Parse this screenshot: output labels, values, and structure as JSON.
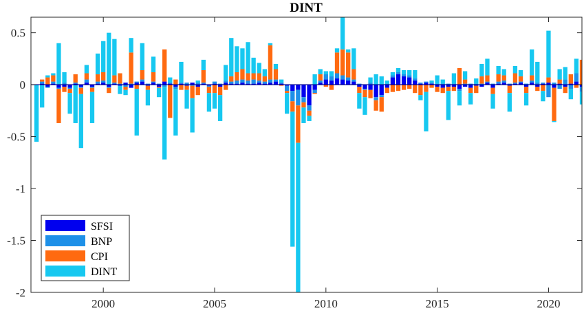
{
  "chart_data": {
    "type": "bar",
    "stacked": true,
    "title": "DINT",
    "xlabel": "",
    "ylabel": "",
    "xlim": [
      1996.75,
      2021.5
    ],
    "ylim": [
      -2,
      0.65
    ],
    "x_ticks": [
      2000,
      2005,
      2010,
      2015,
      2020
    ],
    "y_ticks": [
      -2,
      -1.5,
      -1,
      -0.5,
      0,
      0.5
    ],
    "y_tick_labels": [
      "-2",
      "-1.5",
      "-1",
      "-0.5",
      "0",
      "0.5"
    ],
    "legend_position": "bottom-left",
    "colors": {
      "SFSI": "#0000ee",
      "BNP": "#1e90e8",
      "CPI": "#ff6a10",
      "DINT": "#17c8f0"
    },
    "x": [
      1997.0,
      1997.25,
      1997.5,
      1997.75,
      1998.0,
      1998.25,
      1998.5,
      1998.75,
      1999.0,
      1999.25,
      1999.5,
      1999.75,
      2000.0,
      2000.25,
      2000.5,
      2000.75,
      2001.0,
      2001.25,
      2001.5,
      2001.75,
      2002.0,
      2002.25,
      2002.5,
      2002.75,
      2003.0,
      2003.25,
      2003.5,
      2003.75,
      2004.0,
      2004.25,
      2004.5,
      2004.75,
      2005.0,
      2005.25,
      2005.5,
      2005.75,
      2006.0,
      2006.25,
      2006.5,
      2006.75,
      2007.0,
      2007.25,
      2007.5,
      2007.75,
      2008.0,
      2008.25,
      2008.5,
      2008.75,
      2009.0,
      2009.25,
      2009.5,
      2009.75,
      2010.0,
      2010.25,
      2010.5,
      2010.75,
      2011.0,
      2011.25,
      2011.5,
      2011.75,
      2012.0,
      2012.25,
      2012.5,
      2012.75,
      2013.0,
      2013.25,
      2013.5,
      2013.75,
      2014.0,
      2014.25,
      2014.5,
      2014.75,
      2015.0,
      2015.25,
      2015.5,
      2015.75,
      2016.0,
      2016.25,
      2016.5,
      2016.75,
      2017.0,
      2017.25,
      2017.5,
      2017.75,
      2018.0,
      2018.25,
      2018.5,
      2018.75,
      2019.0,
      2019.25,
      2019.5,
      2019.75,
      2020.0,
      2020.25,
      2020.5,
      2020.75,
      2021.0,
      2021.25,
      2021.5
    ],
    "series": [
      {
        "name": "SFSI",
        "values": [
          0,
          0.01,
          -0.02,
          0.01,
          -0.03,
          -0.02,
          -0.03,
          0.01,
          -0.02,
          0.02,
          -0.02,
          0.01,
          0.02,
          -0.02,
          0.01,
          -0.01,
          0.02,
          -0.03,
          0.02,
          0.03,
          -0.01,
          0.02,
          -0.02,
          0.03,
          0.01,
          -0.02,
          0.01,
          -0.01,
          0.02,
          -0.02,
          0.01,
          -0.01,
          0.01,
          -0.02,
          0.02,
          0.01,
          0.01,
          0.02,
          0.01,
          0.01,
          0.02,
          0.01,
          0.02,
          0.03,
          0.01,
          -0.01,
          -0.06,
          -0.05,
          -0.12,
          -0.2,
          -0.05,
          0.02,
          0.05,
          0.04,
          0.06,
          0.05,
          0.04,
          0.03,
          -0.02,
          -0.04,
          -0.05,
          -0.12,
          -0.1,
          -0.03,
          0.07,
          0.1,
          0.08,
          0.07,
          0.04,
          0.01,
          0.02,
          0.01,
          -0.02,
          -0.03,
          -0.02,
          -0.02,
          -0.04,
          -0.02,
          -0.03,
          -0.01,
          -0.02,
          0.02,
          -0.03,
          0.01,
          0.02,
          -0.01,
          0.01,
          0.02,
          -0.02,
          0.02,
          -0.02,
          0.01,
          0.02,
          -0.03,
          0.01,
          -0.02,
          0.01,
          0.03,
          -0.02
        ]
      },
      {
        "name": "BNP",
        "values": [
          0,
          0.02,
          -0.01,
          0.02,
          -0.01,
          0.02,
          -0.01,
          0.01,
          -0.01,
          0.03,
          -0.01,
          0.02,
          0.02,
          -0.01,
          0.01,
          0.01,
          -0.02,
          0.01,
          0.01,
          0.02,
          0.01,
          0.01,
          0.01,
          -0.02,
          0.01,
          -0.02,
          0.01,
          0.02,
          -0.01,
          0.02,
          0.01,
          -0.01,
          0.02,
          0.01,
          0.02,
          0.02,
          0.03,
          0.03,
          0.03,
          0.04,
          0.02,
          0.02,
          0.03,
          0.02,
          0.01,
          -0.05,
          -0.1,
          -0.15,
          -0.05,
          -0.05,
          -0.03,
          0.02,
          0.05,
          0.04,
          0.05,
          0.04,
          0.03,
          0.02,
          0.01,
          -0.01,
          0.02,
          -0.03,
          -0.02,
          0.01,
          0.02,
          0.02,
          0.02,
          0.02,
          0.02,
          0.01,
          0.01,
          0.01,
          0.01,
          0.01,
          0.01,
          0.01,
          -0.02,
          0.01,
          0.01,
          0.01,
          0.01,
          0.01,
          0.01,
          0.02,
          0.02,
          0.01,
          0.01,
          0.01,
          0.01,
          0.02,
          0.02,
          0.01,
          -0.12,
          0.02,
          -0.04,
          0.05,
          -0.04,
          0.08,
          -0.05
        ]
      },
      {
        "name": "CPI",
        "values": [
          0,
          0.02,
          0.07,
          0.06,
          -0.33,
          -0.05,
          -0.04,
          0.08,
          -0.06,
          0.06,
          -0.04,
          0.07,
          0.08,
          -0.05,
          0.07,
          0.1,
          -0.03,
          0.3,
          -0.04,
          0.09,
          -0.04,
          0.09,
          -0.01,
          0.31,
          -0.32,
          0.05,
          -0.05,
          -0.04,
          -0.12,
          -0.08,
          0.12,
          -0.06,
          -0.08,
          -0.08,
          -0.05,
          0.05,
          0.08,
          0.1,
          0.07,
          0.06,
          0.07,
          0.05,
          0.33,
          0.1,
          -0.01,
          -0.02,
          -0.1,
          -0.36,
          -0.05,
          -0.05,
          -0.01,
          0.06,
          -0.02,
          -0.05,
          0.2,
          0.25,
          0.24,
          0.1,
          -0.06,
          -0.07,
          -0.08,
          -0.1,
          -0.14,
          -0.05,
          -0.07,
          -0.06,
          -0.05,
          -0.04,
          -0.08,
          -0.1,
          -0.07,
          -0.03,
          -0.05,
          -0.05,
          -0.04,
          -0.04,
          0.16,
          0.04,
          -0.05,
          -0.07,
          0.07,
          0.06,
          -0.06,
          0.07,
          0.05,
          -0.07,
          0.09,
          0.05,
          -0.06,
          0.05,
          -0.04,
          -0.06,
          0.05,
          -0.32,
          0.04,
          -0.06,
          0.09,
          -0.03,
          0.24
        ]
      },
      {
        "name": "DINT",
        "values": [
          -0.55,
          -0.22,
          0.02,
          0.02,
          0.4,
          0.1,
          -0.2,
          -0.37,
          -0.52,
          0.08,
          -0.3,
          0.2,
          0.3,
          0.5,
          0.35,
          -0.08,
          -0.05,
          0.14,
          -0.45,
          0.26,
          -0.15,
          0.15,
          -0.09,
          -0.7,
          0.05,
          -0.45,
          0.2,
          -0.18,
          -0.33,
          0.02,
          0.1,
          -0.18,
          -0.15,
          -0.25,
          0.15,
          0.37,
          0.25,
          0.2,
          0.3,
          0.15,
          0.1,
          0.07,
          0.02,
          0.05,
          0.03,
          -0.2,
          -1.3,
          -1.48,
          -0.15,
          -0.05,
          0.1,
          0.05,
          0.03,
          0.05,
          0.04,
          0.35,
          0.03,
          0.2,
          -0.15,
          -0.17,
          0.05,
          0.1,
          0.08,
          0.03,
          0.03,
          0.04,
          0.04,
          0.05,
          0.08,
          -0.05,
          -0.38,
          0.02,
          0.08,
          0.04,
          -0.28,
          0.1,
          -0.14,
          0.08,
          -0.11,
          0.05,
          0.12,
          0.16,
          -0.14,
          0.08,
          0.06,
          -0.18,
          0.07,
          0.06,
          -0.12,
          0.25,
          0.2,
          -0.1,
          0.45,
          -0.01,
          0.1,
          0.12,
          -0.1,
          0.14,
          -0.12
        ]
      }
    ]
  }
}
